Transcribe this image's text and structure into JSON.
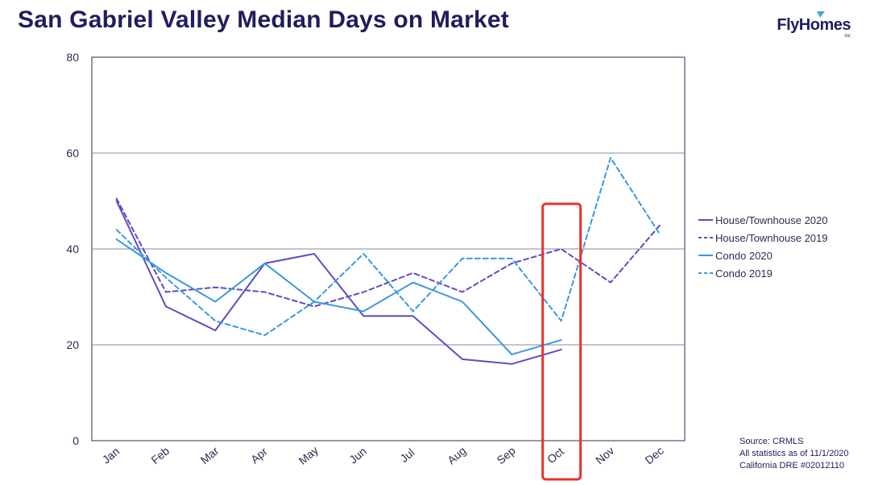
{
  "header": {
    "title": "San Gabriel Valley Median Days on Market"
  },
  "logo": {
    "text": "FlyHomes",
    "sub": "inc",
    "color": "#1f1d5e",
    "accent": "#4aa3e0"
  },
  "footer": {
    "source": "Source: CRMLS",
    "as_of": "All statistics as of 11/1/2020",
    "license": "California DRE #02012110"
  },
  "chart_data": {
    "type": "line",
    "title": "San Gabriel Valley Median Days on Market",
    "xlabel": "",
    "ylabel": "",
    "categories": [
      "Jan",
      "Feb",
      "Mar",
      "Apr",
      "May",
      "Jun",
      "Jul",
      "Aug",
      "Sep",
      "Oct",
      "Nov",
      "Dec"
    ],
    "ylim": [
      0,
      80
    ],
    "yticks": [
      0,
      20,
      40,
      60,
      80
    ],
    "grid": true,
    "legend": "right",
    "highlight": {
      "category": "Oct",
      "color": "#e8322b"
    },
    "series": [
      {
        "name": "House/Townhouse 2020",
        "color": "#5b4fbf",
        "dash": "solid",
        "values": [
          50,
          28,
          23,
          37,
          39,
          26,
          26,
          17,
          16,
          19,
          null,
          null
        ]
      },
      {
        "name": "House/Townhouse 2019",
        "color": "#5b4fbf",
        "dash": "dashed",
        "values": [
          50.5,
          31,
          32,
          31,
          28,
          31,
          35,
          31,
          37,
          40,
          33,
          45
        ]
      },
      {
        "name": "Condo 2020",
        "color": "#3b98dd",
        "dash": "solid",
        "values": [
          42,
          35,
          29,
          37,
          29,
          27,
          33,
          29,
          18,
          21,
          null,
          null
        ]
      },
      {
        "name": "Condo 2019",
        "color": "#3b98dd",
        "dash": "dashed",
        "values": [
          44,
          34,
          25,
          22,
          29,
          39,
          27,
          38,
          38,
          25,
          59,
          43
        ]
      }
    ]
  }
}
